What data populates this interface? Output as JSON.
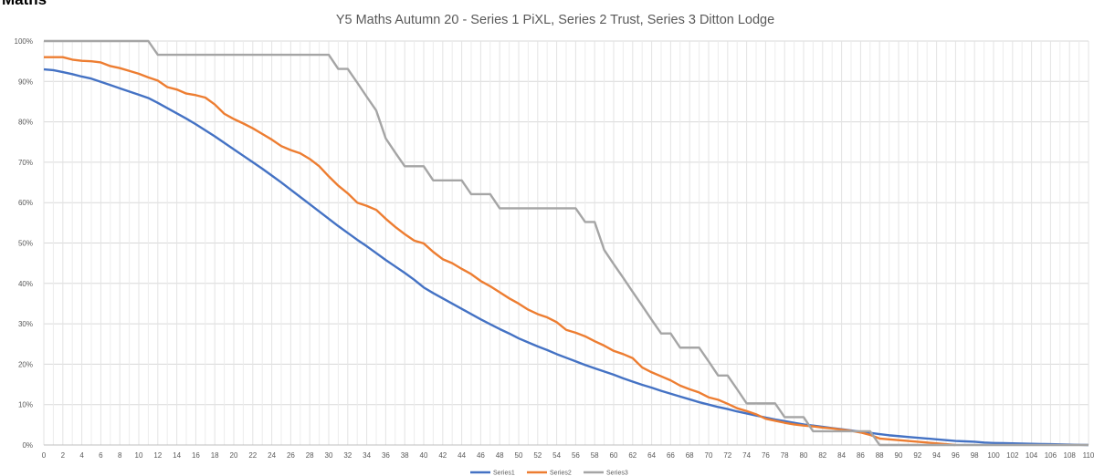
{
  "header": "Maths",
  "chart_data": {
    "type": "line",
    "title": "Y5 Maths Autumn 20 - Series 1 PiXL, Series 2 Trust, Series 3 Ditton Lodge",
    "x": [
      0,
      1,
      2,
      3,
      4,
      5,
      6,
      7,
      8,
      9,
      10,
      11,
      12,
      13,
      14,
      15,
      16,
      17,
      18,
      19,
      20,
      21,
      22,
      23,
      24,
      25,
      26,
      27,
      28,
      29,
      30,
      31,
      32,
      33,
      34,
      35,
      36,
      37,
      38,
      39,
      40,
      41,
      42,
      43,
      44,
      45,
      46,
      47,
      48,
      49,
      50,
      51,
      52,
      53,
      54,
      55,
      56,
      57,
      58,
      59,
      60,
      61,
      62,
      63,
      64,
      65,
      66,
      67,
      68,
      69,
      70,
      71,
      72,
      73,
      74,
      75,
      76,
      77,
      78,
      79,
      80,
      81,
      82,
      83,
      84,
      85,
      86,
      87,
      88,
      89,
      90,
      91,
      92,
      93,
      94,
      95,
      96,
      97,
      98,
      99,
      100,
      101,
      102,
      103,
      104,
      105,
      106,
      107,
      108,
      109,
      110
    ],
    "series": [
      {
        "name": "Series1",
        "color": "#4472c4",
        "values": [
          93,
          92.8,
          92.3,
          91.8,
          91.2,
          90.7,
          89.9,
          89.1,
          88.3,
          87.5,
          86.7,
          85.9,
          84.7,
          83.4,
          82.1,
          80.8,
          79.4,
          77.9,
          76.4,
          74.8,
          73.2,
          71.6,
          70,
          68.4,
          66.7,
          65,
          63.2,
          61.4,
          59.6,
          57.8,
          56,
          54.2,
          52.5,
          50.8,
          49.2,
          47.5,
          45.8,
          44.2,
          42.6,
          40.9,
          39,
          37.6,
          36.3,
          35,
          33.7,
          32.4,
          31.1,
          29.9,
          28.7,
          27.6,
          26.4,
          25.4,
          24.4,
          23.5,
          22.5,
          21.6,
          20.7,
          19.8,
          19,
          18.2,
          17.4,
          16.5,
          15.7,
          14.9,
          14.2,
          13.4,
          12.7,
          12,
          11.3,
          10.6,
          10,
          9.4,
          8.9,
          8.3,
          7.8,
          7.3,
          6.8,
          6.3,
          5.9,
          5.5,
          5.1,
          4.8,
          4.5,
          4.2,
          3.9,
          3.6,
          3.3,
          3,
          2.7,
          2.4,
          2.2,
          2,
          1.8,
          1.6,
          1.4,
          1.2,
          1,
          0.9,
          0.8,
          0.6,
          0.5,
          0.45,
          0.4,
          0.35,
          0.3,
          0.25,
          0.2,
          0.15,
          0.1,
          0.05,
          0
        ]
      },
      {
        "name": "Series2",
        "color": "#ed7d31",
        "values": [
          96,
          96,
          96,
          95.4,
          95.1,
          95,
          94.7,
          93.8,
          93.3,
          92.6,
          91.9,
          91,
          90.2,
          88.6,
          88,
          87,
          86.6,
          86,
          84.3,
          82,
          80.7,
          79.6,
          78.4,
          77,
          75.6,
          74,
          73,
          72.2,
          70.8,
          69,
          66.5,
          64.2,
          62.3,
          60,
          59.2,
          58.2,
          56,
          54,
          52.2,
          50.6,
          49.9,
          47.8,
          46,
          45,
          43.6,
          42.3,
          40.6,
          39.3,
          37.8,
          36.3,
          35,
          33.5,
          32.4,
          31.6,
          30.4,
          28.5,
          27.8,
          26.9,
          25.7,
          24.6,
          23.3,
          22.5,
          21.5,
          19.2,
          18,
          17,
          16,
          14.7,
          13.8,
          13,
          11.8,
          11.2,
          10.2,
          9.1,
          8.4,
          7.6,
          6.5,
          6,
          5.5,
          5.1,
          4.8,
          4.6,
          4.3,
          4.1,
          3.8,
          3.5,
          3.1,
          2.5,
          1.6,
          1.4,
          1.2,
          1,
          0.8,
          0.6,
          0.4,
          0.2,
          0,
          null,
          null,
          null,
          null,
          null,
          null,
          null,
          null,
          null,
          null,
          null,
          null,
          null,
          null
        ]
      },
      {
        "name": "Series3",
        "color": "#a5a5a5",
        "values": [
          100,
          100,
          100,
          100,
          100,
          100,
          100,
          100,
          100,
          100,
          100,
          100,
          96.6,
          96.6,
          96.6,
          96.6,
          96.6,
          96.6,
          96.6,
          96.6,
          96.6,
          96.6,
          96.6,
          96.6,
          96.6,
          96.6,
          96.6,
          96.6,
          96.6,
          96.6,
          96.6,
          93.1,
          93.1,
          89.7,
          86.2,
          82.8,
          75.9,
          72.4,
          69,
          69,
          69,
          65.5,
          65.5,
          65.5,
          65.5,
          62.1,
          62.1,
          62.1,
          58.6,
          58.6,
          58.6,
          58.6,
          58.6,
          58.6,
          58.6,
          58.6,
          58.6,
          55.2,
          55.2,
          48.3,
          44.8,
          41.4,
          37.9,
          34.5,
          31,
          27.6,
          27.6,
          24.1,
          24.1,
          24.1,
          20.7,
          17.2,
          17.2,
          13.8,
          10.3,
          10.3,
          10.3,
          10.3,
          6.9,
          6.9,
          6.9,
          3.4,
          3.4,
          3.4,
          3.4,
          3.4,
          3.4,
          3.4,
          0,
          0,
          0,
          0,
          0,
          0,
          0,
          0,
          0,
          0,
          0,
          0,
          0,
          0,
          0,
          0,
          0,
          0,
          0,
          0,
          0,
          0,
          0
        ]
      }
    ],
    "xlim": [
      0,
      110
    ],
    "xticks": [
      0,
      2,
      4,
      6,
      8,
      10,
      12,
      14,
      16,
      18,
      20,
      22,
      24,
      26,
      28,
      30,
      32,
      34,
      36,
      38,
      40,
      42,
      44,
      46,
      48,
      50,
      52,
      54,
      56,
      58,
      60,
      62,
      64,
      66,
      68,
      70,
      72,
      74,
      76,
      78,
      80,
      82,
      84,
      86,
      88,
      90,
      92,
      94,
      96,
      98,
      100,
      102,
      104,
      106,
      108,
      110
    ],
    "ylim": [
      0,
      100
    ],
    "yticks": [
      {
        "value": 0,
        "label": "0%"
      },
      {
        "value": 10,
        "label": "10%"
      },
      {
        "value": 20,
        "label": "20%"
      },
      {
        "value": 30,
        "label": "30%"
      },
      {
        "value": 40,
        "label": "40%"
      },
      {
        "value": 50,
        "label": "50%"
      },
      {
        "value": 60,
        "label": "60%"
      },
      {
        "value": 70,
        "label": "70%"
      },
      {
        "value": 80,
        "label": "80%"
      },
      {
        "value": 90,
        "label": "90%"
      },
      {
        "value": 100,
        "label": "100%"
      }
    ],
    "grid": true,
    "legend": "bottom"
  }
}
